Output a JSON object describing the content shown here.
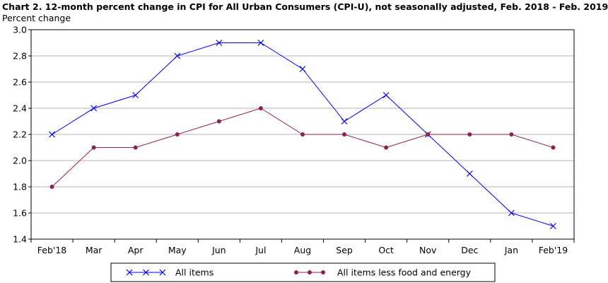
{
  "chart_data": {
    "type": "line",
    "title": "Chart 2. 12-month percent change in CPI for All Urban Consumers (CPI-U), not seasonally adjusted, Feb. 2018 - Feb. 2019",
    "ylabel": "Percent change",
    "xlabel": "",
    "categories": [
      "Feb'18",
      "Mar",
      "Apr",
      "May",
      "Jun",
      "Jul",
      "Aug",
      "Sep",
      "Oct",
      "Nov",
      "Dec",
      "Jan",
      "Feb'19"
    ],
    "ylim": [
      1.4,
      3.0
    ],
    "yticks": [
      "1.4",
      "1.6",
      "1.8",
      "2.0",
      "2.2",
      "2.4",
      "2.6",
      "2.8",
      "3.0"
    ],
    "grid": true,
    "legend_position": "bottom",
    "series": [
      {
        "name": "All items",
        "color": "#0000ff",
        "marker": "x",
        "values": [
          2.2,
          2.4,
          2.5,
          2.8,
          2.9,
          2.9,
          2.7,
          2.3,
          2.5,
          2.2,
          1.9,
          1.6,
          1.5
        ]
      },
      {
        "name": "All items less food and energy",
        "color": "#8b2252",
        "marker": "circle",
        "values": [
          1.8,
          2.1,
          2.1,
          2.2,
          2.3,
          2.4,
          2.2,
          2.2,
          2.1,
          2.2,
          2.2,
          2.2,
          2.1
        ]
      }
    ]
  }
}
